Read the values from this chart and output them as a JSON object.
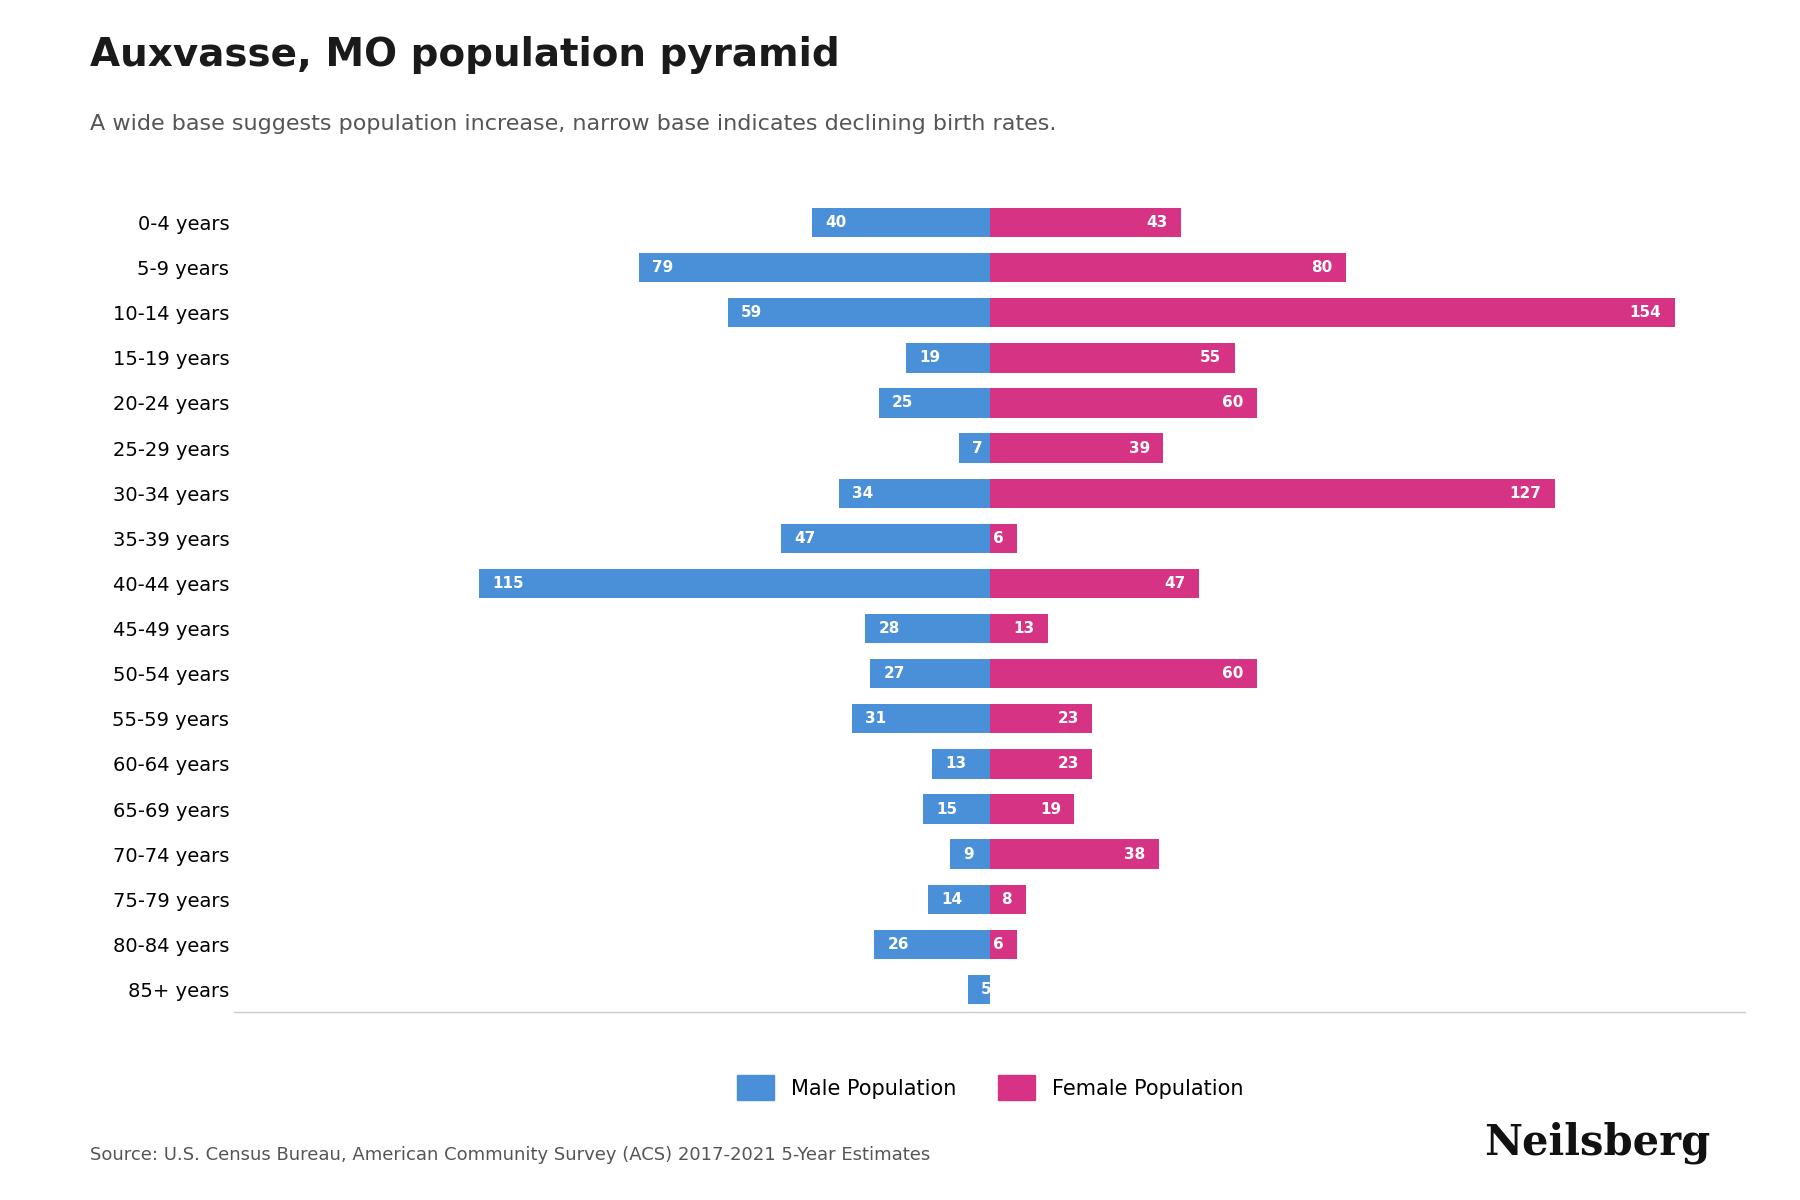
{
  "title": "Auxvasse, MO population pyramid",
  "subtitle": "A wide base suggests population increase, narrow base indicates declining birth rates.",
  "source": "Source: U.S. Census Bureau, American Community Survey (ACS) 2017-2021 5-Year Estimates",
  "branding": "Neilsberg",
  "age_groups": [
    "0-4 years",
    "5-9 years",
    "10-14 years",
    "15-19 years",
    "20-24 years",
    "25-29 years",
    "30-34 years",
    "35-39 years",
    "40-44 years",
    "45-49 years",
    "50-54 years",
    "55-59 years",
    "60-64 years",
    "65-69 years",
    "70-74 years",
    "75-79 years",
    "80-84 years",
    "85+ years"
  ],
  "male": [
    40,
    79,
    59,
    19,
    25,
    7,
    34,
    47,
    115,
    28,
    27,
    31,
    13,
    15,
    9,
    14,
    26,
    5
  ],
  "female": [
    43,
    80,
    154,
    55,
    60,
    39,
    127,
    6,
    47,
    13,
    60,
    23,
    23,
    19,
    38,
    8,
    6,
    0
  ],
  "male_color": "#4a90d9",
  "female_color": "#d63384",
  "background_color": "#ffffff",
  "grid_color": "#e8e8e8",
  "title_fontsize": 28,
  "subtitle_fontsize": 16,
  "label_fontsize": 14,
  "bar_label_fontsize": 11,
  "legend_fontsize": 15,
  "source_fontsize": 13,
  "branding_fontsize": 30,
  "xlim": 170
}
